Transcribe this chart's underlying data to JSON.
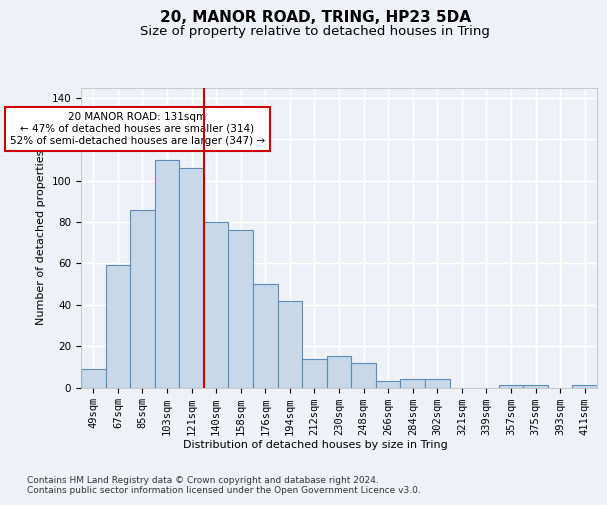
{
  "title": "20, MANOR ROAD, TRING, HP23 5DA",
  "subtitle": "Size of property relative to detached houses in Tring",
  "xlabel": "Distribution of detached houses by size in Tring",
  "ylabel": "Number of detached properties",
  "categories": [
    "49sqm",
    "67sqm",
    "85sqm",
    "103sqm",
    "121sqm",
    "140sqm",
    "158sqm",
    "176sqm",
    "194sqm",
    "212sqm",
    "230sqm",
    "248sqm",
    "266sqm",
    "284sqm",
    "302sqm",
    "321sqm",
    "339sqm",
    "357sqm",
    "375sqm",
    "393sqm",
    "411sqm"
  ],
  "values": [
    9,
    59,
    86,
    110,
    106,
    80,
    76,
    50,
    42,
    14,
    15,
    12,
    3,
    4,
    4,
    0,
    0,
    1,
    1,
    0,
    1
  ],
  "bar_color": "#c8d8e8",
  "bar_edge_color": "#5b8db8",
  "vline_x": 4.5,
  "vline_color": "#cc0000",
  "annotation_text": "20 MANOR ROAD: 131sqm\n← 47% of detached houses are smaller (314)\n52% of semi-detached houses are larger (347) →",
  "annotation_box_color": "#ffffff",
  "annotation_box_edge": "#cc0000",
  "ylim": [
    0,
    145
  ],
  "yticks": [
    0,
    20,
    40,
    60,
    80,
    100,
    120,
    140
  ],
  "footnote": "Contains HM Land Registry data © Crown copyright and database right 2024.\nContains public sector information licensed under the Open Government Licence v3.0.",
  "bg_color": "#eef2f7",
  "plot_bg_color": "#eef2f7",
  "grid_color": "#ffffff",
  "title_fontsize": 11,
  "subtitle_fontsize": 9.5,
  "label_fontsize": 8,
  "tick_fontsize": 7.5,
  "footnote_fontsize": 6.5,
  "annotation_fontsize": 7.5
}
